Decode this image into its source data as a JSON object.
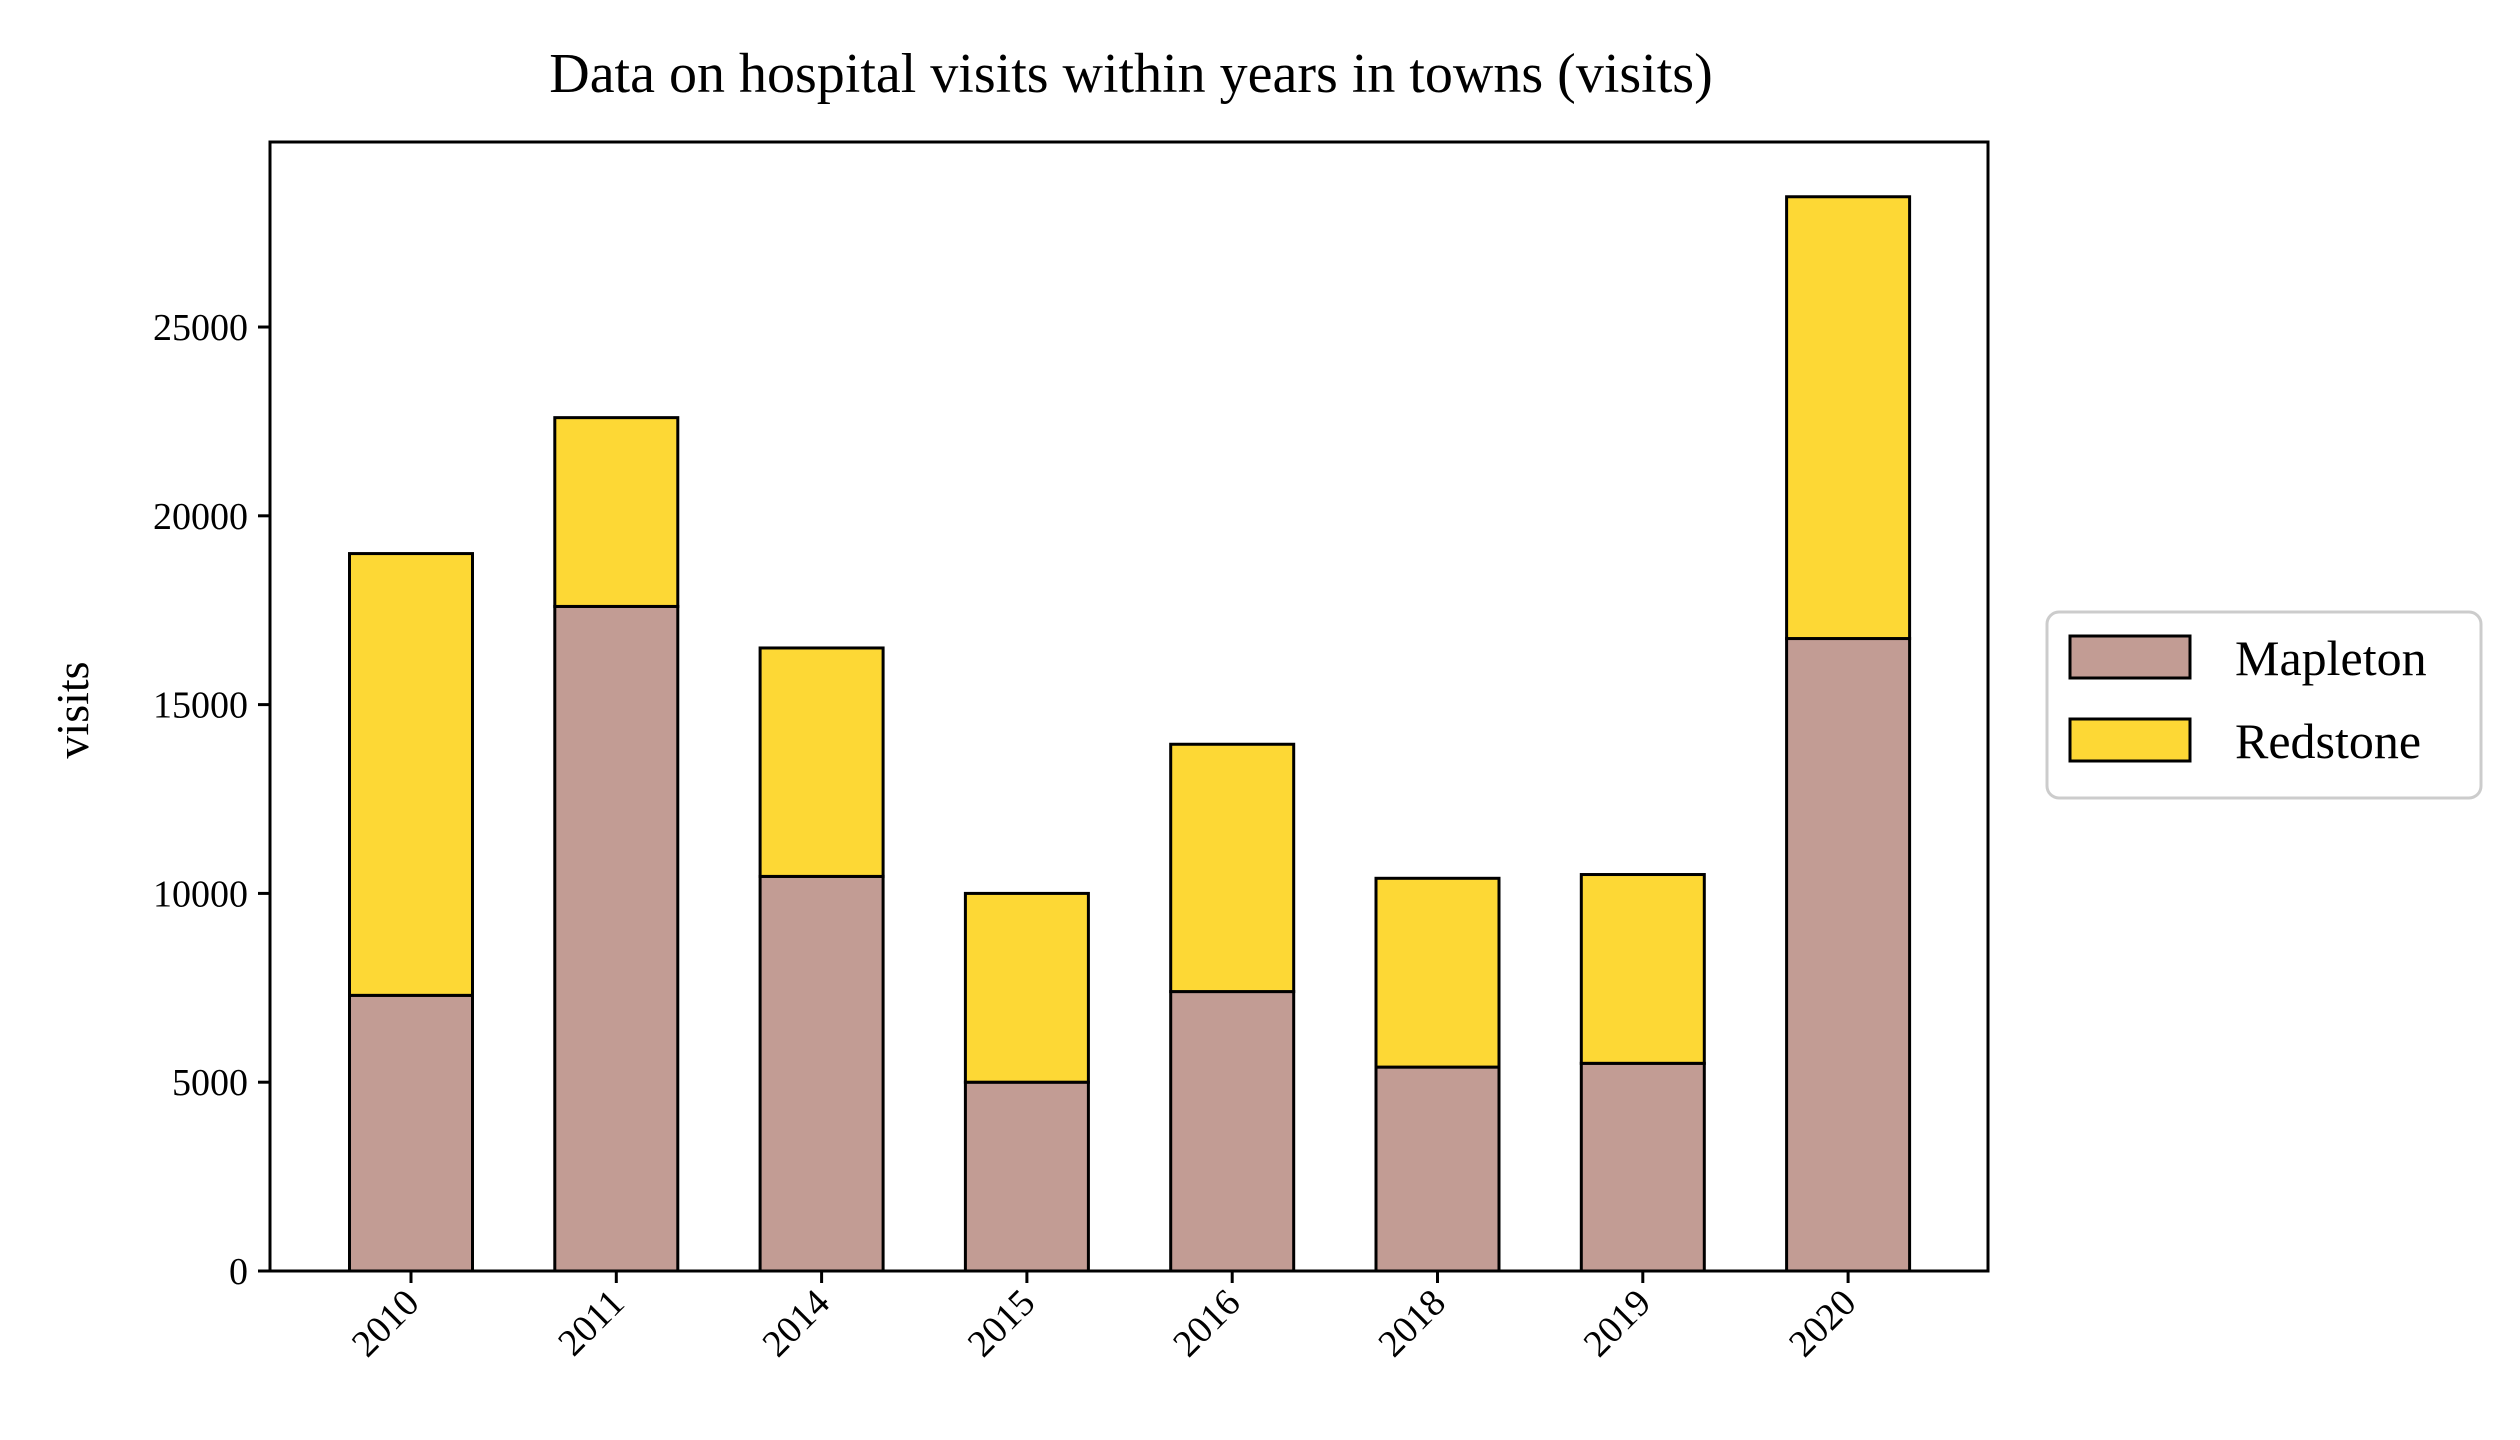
{
  "chart_data": {
    "type": "bar",
    "stacked": true,
    "title": "Data on hospital visits within years in towns (visits)",
    "xlabel": "",
    "ylabel": "visits",
    "categories": [
      "2010",
      "2011",
      "2014",
      "2015",
      "2016",
      "2018",
      "2019",
      "2020"
    ],
    "series": [
      {
        "name": "Mapleton",
        "color": "#c29c94",
        "values": [
          7300,
          17600,
          10450,
          5000,
          7400,
          5400,
          5500,
          16750
        ]
      },
      {
        "name": "Redstone",
        "color": "#fdd835",
        "values": [
          11700,
          5000,
          6050,
          5000,
          6550,
          5000,
          5000,
          11700
        ]
      }
    ],
    "ylim": [
      0,
      29900
    ],
    "yticks": [
      0,
      5000,
      10000,
      15000,
      20000,
      25000
    ],
    "grid": false,
    "legend_position": "right"
  }
}
